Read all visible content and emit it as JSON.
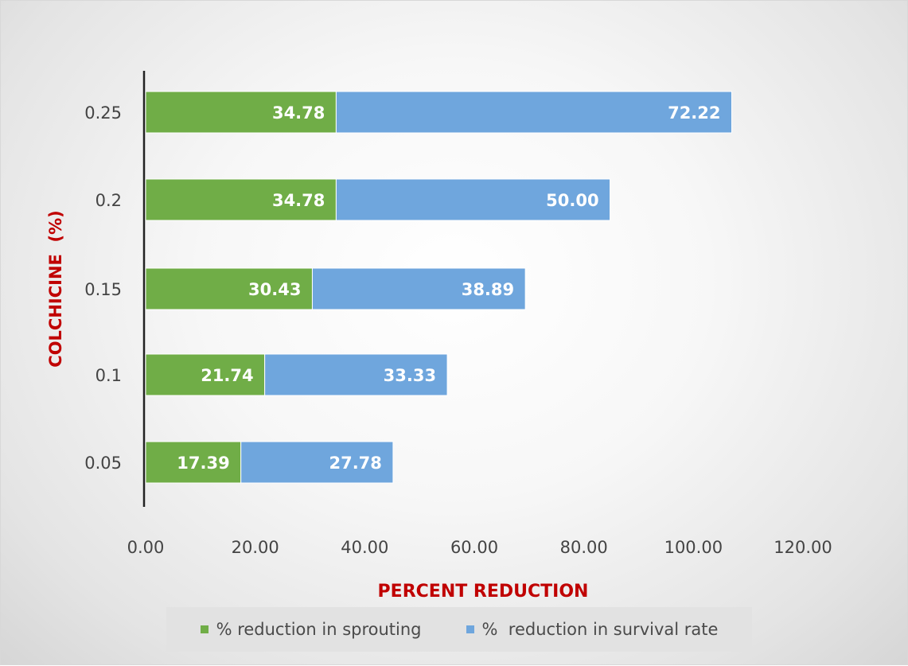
{
  "chart_data": {
    "type": "bar",
    "orientation": "horizontal",
    "stacked": true,
    "categories": [
      "0.05",
      "0.1",
      "0.15",
      "0.2",
      "0.25"
    ],
    "series": [
      {
        "name": "% reduction in sprouting",
        "values": [
          17.39,
          21.74,
          30.43,
          34.78,
          34.78
        ],
        "labels": [
          "17.39",
          "21.74",
          "30.43",
          "34.78",
          "34.78"
        ],
        "color": "#70ad47"
      },
      {
        "name": "%  reduction in survival rate",
        "values": [
          27.78,
          33.33,
          38.89,
          50.0,
          72.22
        ],
        "labels": [
          "27.78",
          "33.33",
          "38.89",
          "50.00",
          "72.22"
        ],
        "color": "#6fa6dd"
      }
    ],
    "xlabel": "PERCENT REDUCTION",
    "ylabel": "COLCHICINE  (%)",
    "xlim": [
      0,
      120
    ],
    "xticks": [
      "0.00",
      "20.00",
      "40.00",
      "60.00",
      "80.00",
      "100.00",
      "120.00"
    ],
    "grid": false,
    "legend_position": "bottom",
    "axis_title_color": "#c00000",
    "data_label_color": "#ffffff"
  }
}
